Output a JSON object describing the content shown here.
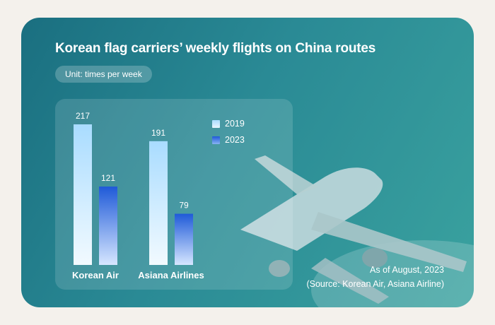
{
  "chart_data": {
    "type": "bar",
    "title": "Korean flag carriers’ weekly flights on China routes",
    "unit_label": "Unit: times per week",
    "categories": [
      "Korean Air",
      "Asiana Airlines"
    ],
    "series": [
      {
        "name": "2019",
        "values": [
          217,
          191
        ],
        "color": "#cfeeff"
      },
      {
        "name": "2023",
        "values": [
          121,
          79
        ],
        "color": "#2f6fe4"
      }
    ],
    "ylim": [
      0,
      217
    ],
    "grid": false,
    "legend_position": "top-right",
    "data_labels": true
  },
  "notes": {
    "as_of": "As of August, 2023",
    "source": "(Source: Korean Air, Asiana Airline)"
  },
  "colors": {
    "background": "#f4f1ec",
    "card": "#2a8a95",
    "text": "#ffffff"
  },
  "icons": {
    "plane": "airplane-illustration"
  }
}
